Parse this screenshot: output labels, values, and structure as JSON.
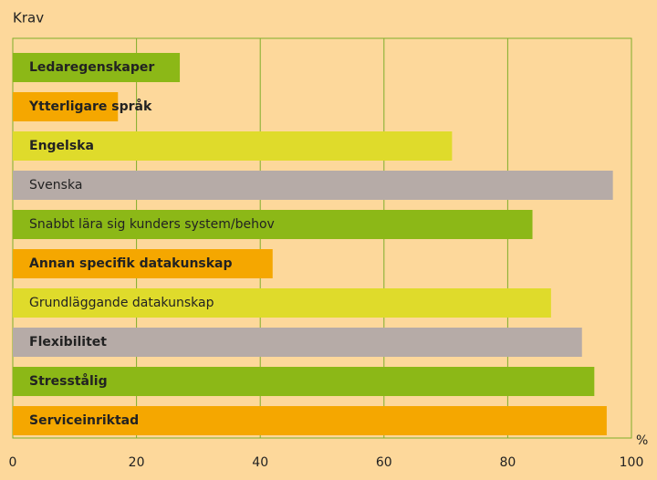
{
  "chart_data": {
    "type": "barh",
    "title": "Krav",
    "x_unit": "%",
    "categories": [
      "Ledaregenskaper",
      "Ytterligare språk",
      "Engelska",
      "Svenska",
      "Snabbt lära sig kunders system/behov",
      "Annan specifik datakunskap",
      "Grundläggande datakunskap",
      "Flexibilitet",
      "Stresstålig",
      "Serviceinriktad"
    ],
    "values": [
      27,
      17,
      71,
      97,
      84,
      42,
      87,
      92,
      94,
      96
    ],
    "colors": [
      "#8cb817",
      "#f5a700",
      "#dfdb2b",
      "#b6aba7",
      "#8cb817",
      "#f5a700",
      "#dfdb2b",
      "#b6aba7",
      "#8cb817",
      "#f5a700"
    ],
    "label_bold": [
      true,
      true,
      true,
      false,
      false,
      true,
      false,
      true,
      true,
      true
    ],
    "xlim": [
      0,
      100
    ],
    "xticks": [
      0,
      20,
      40,
      60,
      80,
      100
    ],
    "grid": true,
    "grid_color": "#7fae2a"
  }
}
